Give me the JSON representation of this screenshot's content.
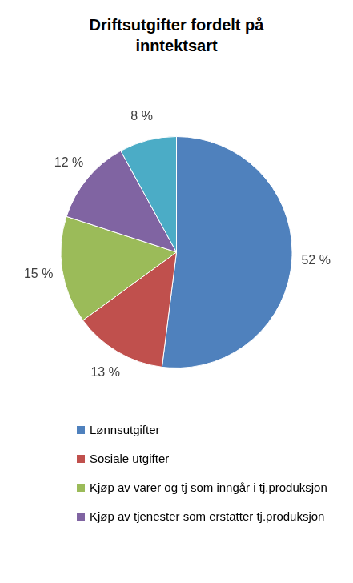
{
  "chart_data": {
    "type": "pie",
    "title": "Driftsutgifter fordelt på inntektsart",
    "categories": [
      "Lønnsutgifter",
      "Sosiale utgifter",
      "Kjøp av varer og tj som inngår i tj.produksjon",
      "Kjøp av tjenester som erstatter tj.produksjon",
      null
    ],
    "values": [
      52,
      13,
      15,
      12,
      8
    ],
    "value_labels": [
      "52 %",
      "13 %",
      "15 %",
      "12 %",
      "8 %"
    ],
    "colors": [
      "#4f81bd",
      "#c0504d",
      "#9bbb59",
      "#8064a2",
      "#4bacc6"
    ],
    "data_labels": true,
    "legend": "bottom"
  }
}
